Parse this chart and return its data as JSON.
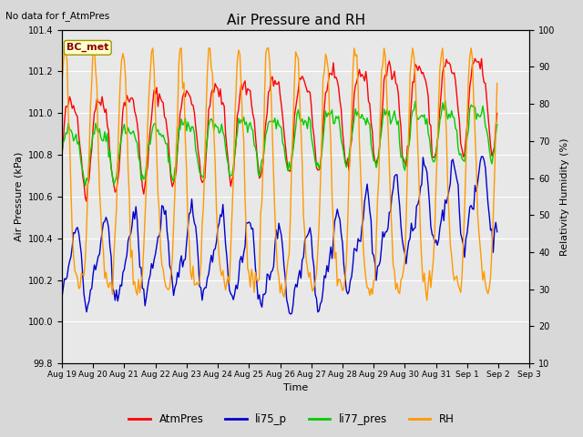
{
  "title": "Air Pressure and RH",
  "no_data_text": "No data for f_AtmPres",
  "station_label": "BC_met",
  "xlabel": "Time",
  "ylabel_left": "Air Pressure (kPa)",
  "ylabel_right": "Relativity Humidity (%)",
  "ylim_left": [
    99.8,
    101.4
  ],
  "ylim_right": [
    10,
    100
  ],
  "yticks_left": [
    99.8,
    100.0,
    100.2,
    100.4,
    100.6,
    100.8,
    101.0,
    101.2,
    101.4
  ],
  "yticks_right": [
    10,
    20,
    30,
    40,
    50,
    60,
    70,
    80,
    90,
    100
  ],
  "xtick_labels": [
    "Aug 19",
    "Aug 20",
    "Aug 21",
    "Aug 22",
    "Aug 23",
    "Aug 24",
    "Aug 25",
    "Aug 26",
    "Aug 27",
    "Aug 28",
    "Aug 29",
    "Aug 30",
    "Aug 31",
    "Sep 1",
    "Sep 2",
    "Sep 3"
  ],
  "legend_entries": [
    "AtmPres",
    "li75_p",
    "li77_pres",
    "RH"
  ],
  "legend_colors": [
    "#ff0000",
    "#0000cc",
    "#00cc00",
    "#ff9900"
  ],
  "bg_color": "#d8d8d8",
  "plot_bg_color": "#e8e8e8",
  "line_width": 1.0,
  "n_points": 336
}
